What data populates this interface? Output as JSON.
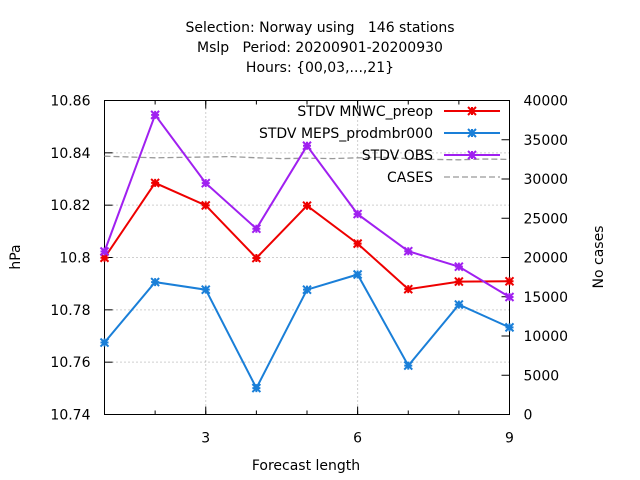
{
  "header": {
    "line1": "Selection: Norway using   146 stations",
    "line2": "Mslp   Period: 20200901-20200930",
    "line3": "Hours: {00,03,...,21}"
  },
  "chart_data": {
    "type": "line",
    "xlabel": "Forecast length",
    "ylabel": "hPa",
    "y2label": "No cases",
    "xlim": [
      1,
      9
    ],
    "ylim": [
      10.74,
      10.86
    ],
    "y2lim": [
      0,
      40000
    ],
    "xticks": [
      "3",
      "6",
      "9"
    ],
    "yticks": [
      "10.74",
      "10.76",
      "10.78",
      "10.8",
      "10.82",
      "10.84",
      "10.86"
    ],
    "y2ticks": [
      "0",
      "5000",
      "10000",
      "15000",
      "20000",
      "25000",
      "30000",
      "35000",
      "40000"
    ],
    "grid": true,
    "legend_position": "top-right",
    "x": [
      1,
      2,
      3,
      4,
      5,
      6,
      7,
      8,
      9
    ],
    "series": [
      {
        "name": "STDV MNWC_preop",
        "color": "#ee0000",
        "values": [
          10.7999,
          10.8285,
          10.8199,
          10.7998,
          10.8198,
          10.8053,
          10.7879,
          10.7908,
          10.7909
        ]
      },
      {
        "name": "STDV MEPS_prodmbr000",
        "color": "#1a7fd8",
        "values": [
          10.7675,
          10.7906,
          10.7877,
          10.7501,
          10.7877,
          10.7935,
          10.7587,
          10.782,
          10.7733
        ]
      },
      {
        "name": "STDV OBS",
        "color": "#a020f0",
        "values": [
          10.8023,
          10.8545,
          10.8284,
          10.811,
          10.8427,
          10.8166,
          10.8024,
          10.7965,
          10.7849
        ]
      }
    ],
    "cases": {
      "name": "CASES",
      "color": "#999999",
      "axis": "y2",
      "x": [
        1,
        1.5,
        2,
        2.5,
        3,
        3.5,
        4,
        4.5,
        5,
        5.5,
        6,
        6.5,
        7,
        7.5,
        8,
        8.5,
        9
      ],
      "values": [
        32900,
        32800,
        32700,
        32750,
        32800,
        32850,
        32700,
        32600,
        32650,
        32600,
        32700,
        32750,
        32600,
        32500,
        32450,
        32550,
        32500
      ]
    }
  }
}
